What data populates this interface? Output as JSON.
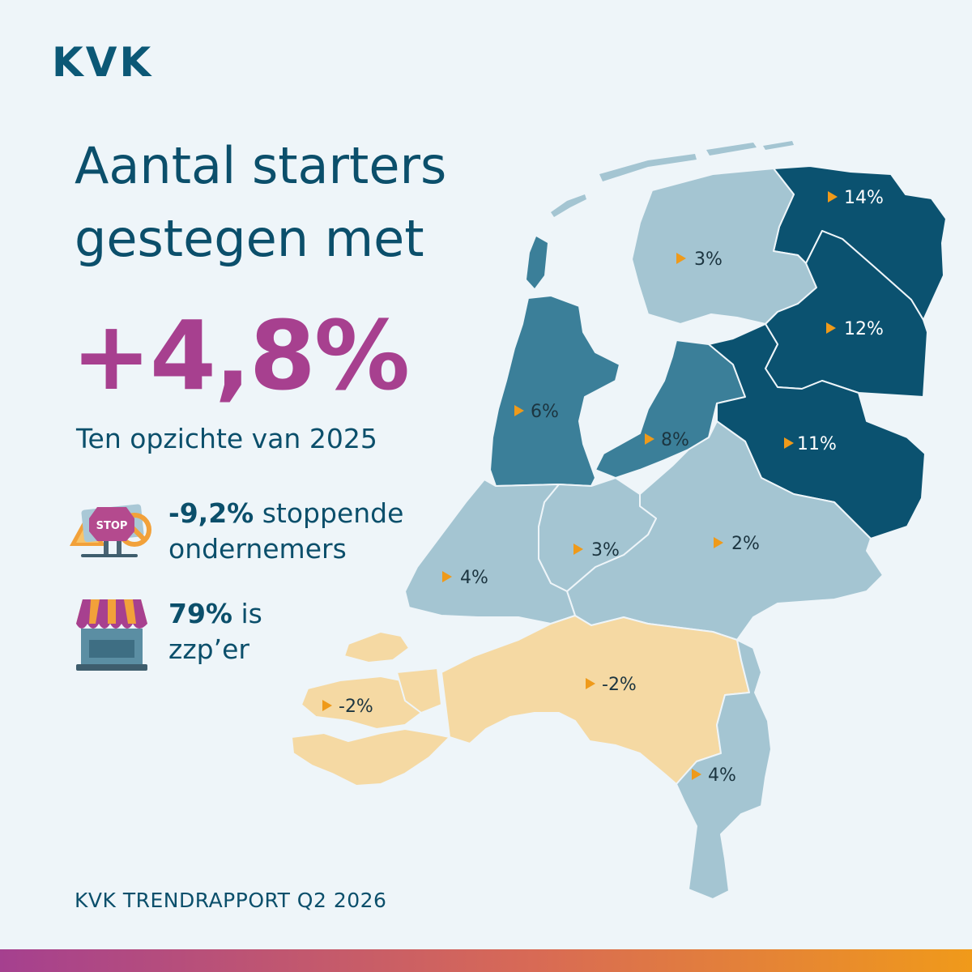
{
  "brand": {
    "logo_text": "KVK"
  },
  "headline": {
    "line1": "Aantal starters",
    "line2": "gestegen met"
  },
  "big_number": "+4,8%",
  "subline": "Ten opzichte van 2025",
  "stats": [
    {
      "icon": "stop-sign-icon",
      "value": "-9,2%",
      "text1": " stoppende",
      "text2": "ondernemers"
    },
    {
      "icon": "shop-awning-icon",
      "value": "79%",
      "text1": " is",
      "text2": "zzp’er"
    }
  ],
  "colors": {
    "accent": "#a7408f",
    "text": "#0b4f6b",
    "high": "#0b5270",
    "medium": "#3b7f99",
    "low": "#a4c5d2",
    "negative": "#f5d9a3",
    "arrow": "#ef9a1a"
  },
  "map_data": {
    "regions": [
      {
        "id": "groningen",
        "value": "14%"
      },
      {
        "id": "friesland",
        "value": "3%"
      },
      {
        "id": "drenthe",
        "value": "12%"
      },
      {
        "id": "noord-holland",
        "value": "6%"
      },
      {
        "id": "flevoland",
        "value": "8%"
      },
      {
        "id": "overijssel",
        "value": "11%"
      },
      {
        "id": "gelderland",
        "value": "2%"
      },
      {
        "id": "utrecht",
        "value": "3%"
      },
      {
        "id": "zuid-holland",
        "value": "4%"
      },
      {
        "id": "zeeland",
        "value": "-2%"
      },
      {
        "id": "noord-brabant",
        "value": "-2%"
      },
      {
        "id": "limburg",
        "value": "4%"
      }
    ]
  },
  "footer": "KVK TRENDRAPPORT Q2 2026"
}
